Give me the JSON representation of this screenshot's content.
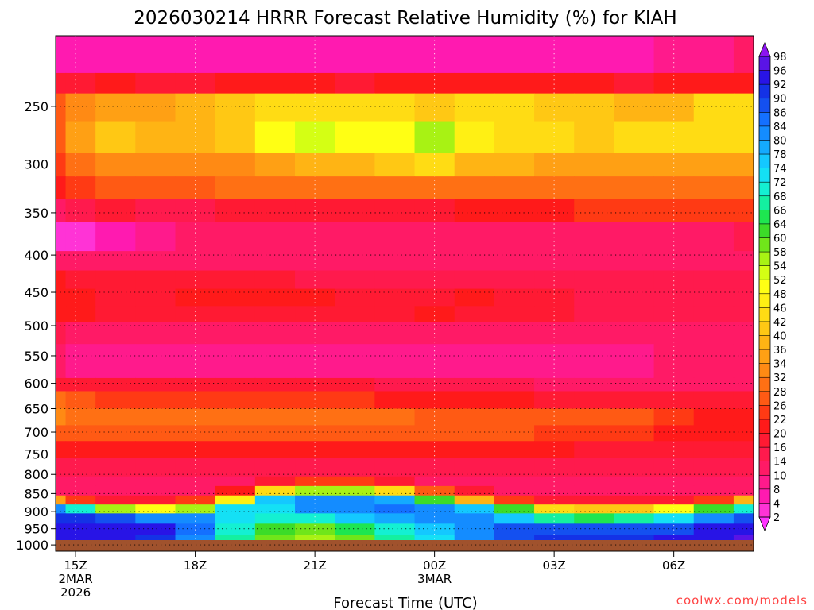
{
  "chart_data": {
    "type": "heatmap",
    "title": "2026030214 HRRR Forecast Relative Humidity (%) for KIAH",
    "xlabel": "Forecast Time (UTC)",
    "ylabel": "",
    "y_scale": "log-pressure",
    "y_range_hpa": [
      1020,
      200
    ],
    "x_range_hours_utc": [
      14.5,
      32.0
    ],
    "x_ticks": [
      {
        "hour": 15,
        "lines": [
          "15Z",
          "2MAR",
          "2026"
        ]
      },
      {
        "hour": 18,
        "lines": [
          "18Z"
        ]
      },
      {
        "hour": 21,
        "lines": [
          "21Z"
        ]
      },
      {
        "hour": 24,
        "lines": [
          "00Z",
          "3MAR"
        ]
      },
      {
        "hour": 27,
        "lines": [
          "03Z"
        ]
      },
      {
        "hour": 30,
        "lines": [
          "06Z"
        ]
      }
    ],
    "y_ticks": [
      250,
      300,
      350,
      400,
      450,
      500,
      550,
      600,
      650,
      700,
      750,
      800,
      850,
      900,
      950,
      1000
    ],
    "grid": true,
    "legend_position": "right",
    "colorbar_levels": [
      2,
      4,
      8,
      10,
      14,
      16,
      20,
      22,
      26,
      28,
      32,
      34,
      36,
      40,
      42,
      46,
      48,
      52,
      54,
      58,
      60,
      64,
      66,
      68,
      72,
      74,
      78,
      80,
      84,
      86,
      90,
      92,
      96,
      98
    ],
    "colorbar_colors": [
      "#ff33ff",
      "#ff33d6",
      "#ff1ab0",
      "#ff1a8c",
      "#ff1a66",
      "#ff1a4d",
      "#ff1a33",
      "#ff1a1a",
      "#ff3a14",
      "#ff5a14",
      "#ff7014",
      "#ff8a14",
      "#ffa014",
      "#ffb414",
      "#ffc814",
      "#ffdc14",
      "#fff014",
      "#ffff14",
      "#d4ff14",
      "#a8f214",
      "#70e61a",
      "#3cdc28",
      "#1ee650",
      "#14f0a0",
      "#14f0d2",
      "#14e0f5",
      "#14c8ff",
      "#14aaff",
      "#148cff",
      "#1470ff",
      "#1450f0",
      "#1432e6",
      "#2814e6",
      "#5a14e6",
      "#8c14f0"
    ],
    "time_axis_hours": [
      14.5,
      15,
      16,
      17,
      18,
      19,
      20,
      21,
      22,
      23,
      24,
      25,
      26,
      27,
      28,
      29,
      30,
      31,
      32
    ],
    "humidity_bands": [
      {
        "p_top": 200,
        "p_bottom": 225,
        "rh": [
          6,
          5,
          6,
          6,
          5,
          6,
          7,
          7,
          6,
          7,
          7,
          6,
          6,
          7,
          7,
          7,
          8,
          9,
          10
        ]
      },
      {
        "p_top": 225,
        "p_bottom": 240,
        "rh": [
          18,
          16,
          20,
          18,
          17,
          20,
          20,
          20,
          18,
          20,
          21,
          20,
          20,
          20,
          20,
          19,
          20,
          20,
          20
        ]
      },
      {
        "p_top": 240,
        "p_bottom": 262,
        "rh": [
          27,
          33,
          35,
          34,
          36,
          40,
          42,
          44,
          43,
          43,
          40,
          43,
          42,
          41,
          40,
          38,
          38,
          42,
          44
        ]
      },
      {
        "p_top": 262,
        "p_bottom": 290,
        "rh": [
          27,
          34,
          40,
          36,
          37,
          40,
          51,
          53,
          50,
          48,
          55,
          46,
          44,
          42,
          40,
          43,
          44,
          42,
          44
        ]
      },
      {
        "p_top": 290,
        "p_bottom": 312,
        "rh": [
          24,
          30,
          32,
          32,
          33,
          33,
          35,
          38,
          38,
          40,
          44,
          38,
          37,
          35,
          34,
          34,
          34,
          34,
          35
        ]
      },
      {
        "p_top": 312,
        "p_bottom": 335,
        "rh": [
          20,
          23,
          26,
          27,
          27,
          28,
          28,
          29,
          30,
          31,
          31,
          30,
          29,
          28,
          28,
          28,
          29,
          30,
          30
        ]
      },
      {
        "p_top": 335,
        "p_bottom": 360,
        "rh": [
          12,
          14,
          16,
          15,
          14,
          16,
          18,
          18,
          18,
          18,
          19,
          20,
          20,
          21,
          22,
          22,
          22,
          23,
          22
        ]
      },
      {
        "p_top": 360,
        "p_bottom": 395,
        "rh": [
          3,
          2,
          4,
          8,
          10,
          10,
          10,
          11,
          12,
          12,
          12,
          12,
          12,
          12,
          12,
          12,
          12,
          13,
          14
        ]
      },
      {
        "p_top": 395,
        "p_bottom": 420,
        "rh": [
          10,
          10,
          10,
          12,
          12,
          12,
          12,
          12,
          12,
          12,
          12,
          12,
          12,
          12,
          12,
          12,
          12,
          13,
          13
        ]
      },
      {
        "p_top": 420,
        "p_bottom": 445,
        "rh": [
          20,
          18,
          17,
          16,
          16,
          16,
          16,
          15,
          14,
          14,
          14,
          14,
          14,
          14,
          14,
          14,
          14,
          14,
          14
        ]
      },
      {
        "p_top": 445,
        "p_bottom": 470,
        "rh": [
          21,
          20,
          19,
          19,
          20,
          20,
          21,
          20,
          18,
          19,
          19,
          20,
          19,
          16,
          15,
          14,
          14,
          14,
          14
        ]
      },
      {
        "p_top": 470,
        "p_bottom": 495,
        "rh": [
          21,
          20,
          19,
          18,
          18,
          18,
          17,
          17,
          17,
          19,
          21,
          18,
          17,
          16,
          15,
          14,
          14,
          14,
          14
        ]
      },
      {
        "p_top": 495,
        "p_bottom": 530,
        "rh": [
          14,
          13,
          12,
          12,
          12,
          12,
          12,
          12,
          12,
          12,
          13,
          12,
          12,
          12,
          12,
          12,
          12,
          12,
          13
        ]
      },
      {
        "p_top": 530,
        "p_bottom": 590,
        "rh": [
          10,
          9,
          9,
          9,
          9,
          8,
          8,
          8,
          9,
          9,
          9,
          9,
          9,
          9,
          9,
          9,
          10,
          10,
          11
        ]
      },
      {
        "p_top": 590,
        "p_bottom": 615,
        "rh": [
          18,
          18,
          18,
          18,
          18,
          18,
          18,
          18,
          16,
          15,
          15,
          14,
          14,
          13,
          13,
          13,
          13,
          13,
          13
        ]
      },
      {
        "p_top": 615,
        "p_bottom": 650,
        "rh": [
          28,
          26,
          25,
          24,
          24,
          23,
          23,
          23,
          22,
          21,
          21,
          20,
          20,
          19,
          18,
          17,
          17,
          16,
          16
        ]
      },
      {
        "p_top": 650,
        "p_bottom": 685,
        "rh": [
          32,
          30,
          28,
          28,
          28,
          28,
          28,
          29,
          28,
          28,
          27,
          27,
          27,
          27,
          27,
          26,
          24,
          21,
          20
        ]
      },
      {
        "p_top": 685,
        "p_bottom": 720,
        "rh": [
          26,
          26,
          26,
          27,
          27,
          27,
          27,
          27,
          26,
          26,
          26,
          26,
          26,
          25,
          24,
          22,
          21,
          20,
          20
        ]
      },
      {
        "p_top": 720,
        "p_bottom": 760,
        "rh": [
          20,
          20,
          20,
          20,
          20,
          20,
          20,
          20,
          20,
          20,
          20,
          20,
          20,
          20,
          19,
          18,
          18,
          18,
          18
        ]
      },
      {
        "p_top": 760,
        "p_bottom": 805,
        "rh": [
          14,
          14,
          14,
          14,
          14,
          14,
          14,
          15,
          15,
          15,
          15,
          14,
          14,
          14,
          14,
          14,
          14,
          14,
          14
        ]
      },
      {
        "p_top": 805,
        "p_bottom": 830,
        "rh": [
          10,
          10,
          10,
          10,
          10,
          12,
          16,
          24,
          24,
          18,
          13,
          10,
          10,
          10,
          10,
          10,
          10,
          10,
          10
        ]
      },
      {
        "p_top": 830,
        "p_bottom": 855,
        "rh": [
          12,
          10,
          10,
          10,
          12,
          20,
          42,
          55,
          55,
          44,
          26,
          16,
          12,
          10,
          10,
          10,
          10,
          10,
          12
        ]
      },
      {
        "p_top": 855,
        "p_bottom": 880,
        "rh": [
          34,
          24,
          18,
          18,
          22,
          46,
          74,
          80,
          82,
          78,
          62,
          38,
          24,
          18,
          16,
          16,
          18,
          22,
          36
        ]
      },
      {
        "p_top": 880,
        "p_bottom": 905,
        "rh": [
          82,
          70,
          54,
          48,
          56,
          72,
          72,
          80,
          82,
          84,
          80,
          76,
          60,
          44,
          40,
          40,
          48,
          60,
          70
        ]
      },
      {
        "p_top": 905,
        "p_bottom": 935,
        "rh": [
          90,
          90,
          86,
          82,
          80,
          72,
          68,
          70,
          74,
          78,
          80,
          80,
          74,
          66,
          64,
          66,
          72,
          80,
          86
        ]
      },
      {
        "p_top": 935,
        "p_bottom": 970,
        "rh": [
          92,
          95,
          94,
          92,
          84,
          70,
          60,
          58,
          64,
          70,
          76,
          82,
          86,
          86,
          86,
          86,
          88,
          92,
          94
        ]
      },
      {
        "p_top": 970,
        "p_bottom": 1005,
        "rh": [
          92,
          95,
          94,
          90,
          80,
          66,
          58,
          54,
          58,
          66,
          72,
          80,
          88,
          90,
          90,
          90,
          92,
          94,
          96
        ]
      }
    ],
    "ground_color": "#a0522d",
    "credit": "coolwx.com/models"
  }
}
